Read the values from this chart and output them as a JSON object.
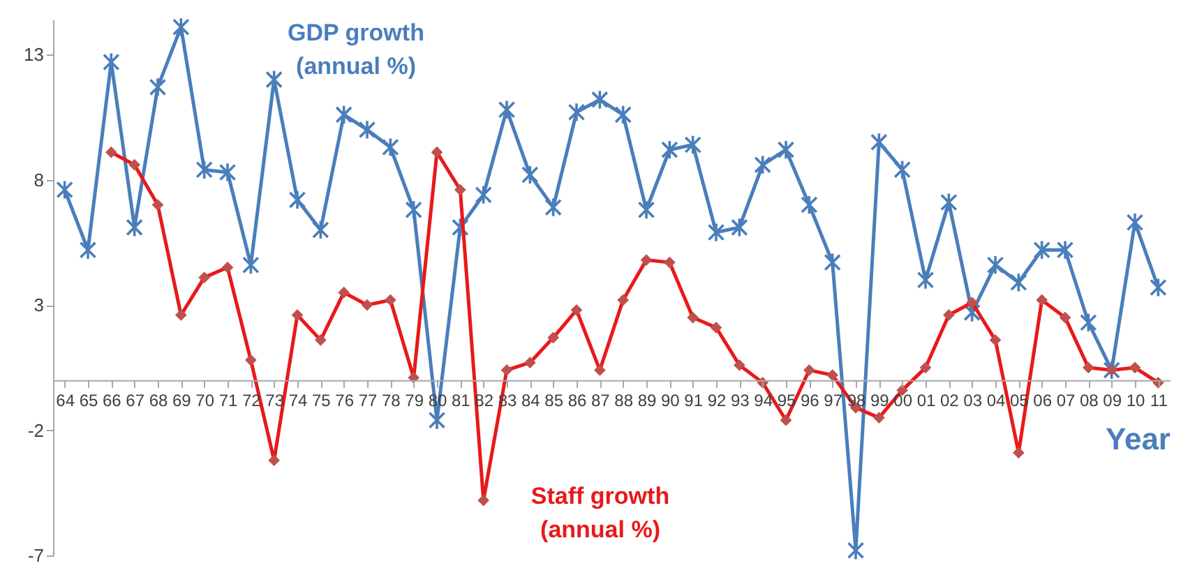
{
  "chart_data": {
    "type": "line",
    "xlabel": "Year",
    "categories": [
      "64",
      "65",
      "66",
      "67",
      "68",
      "69",
      "70",
      "71",
      "72",
      "73",
      "74",
      "75",
      "76",
      "77",
      "78",
      "79",
      "80",
      "81",
      "82",
      "83",
      "84",
      "85",
      "86",
      "87",
      "88",
      "89",
      "90",
      "91",
      "92",
      "93",
      "94",
      "95",
      "96",
      "97",
      "98",
      "99",
      "00",
      "01",
      "02",
      "03",
      "04",
      "05",
      "06",
      "07",
      "08",
      "09",
      "10",
      "11"
    ],
    "series": [
      {
        "name": "GDP growth (annual %)",
        "color": "#4a7ebb",
        "marker": "cross",
        "values": [
          7.6,
          5.2,
          12.7,
          6.1,
          11.7,
          14.1,
          8.4,
          8.3,
          4.6,
          12.0,
          7.2,
          6.0,
          10.6,
          10.0,
          9.3,
          6.8,
          -1.6,
          6.1,
          7.4,
          10.8,
          8.2,
          6.9,
          10.7,
          11.2,
          10.6,
          6.8,
          9.2,
          9.4,
          5.9,
          6.1,
          8.6,
          9.2,
          7.0,
          4.7,
          -6.8,
          9.5,
          8.4,
          4.0,
          7.1,
          2.7,
          4.6,
          3.9,
          5.2,
          5.2,
          2.3,
          0.4,
          6.3,
          3.7
        ]
      },
      {
        "name": "Staff growth (annual %)",
        "color": "#e8191a",
        "marker": "diamond",
        "values": [
          null,
          null,
          9.1,
          8.6,
          7.0,
          2.6,
          4.1,
          4.5,
          0.8,
          -3.2,
          2.6,
          1.6,
          3.5,
          3.0,
          3.2,
          0.1,
          9.1,
          7.6,
          -4.8,
          0.4,
          0.7,
          1.7,
          2.8,
          0.4,
          3.2,
          4.8,
          4.7,
          2.5,
          2.1,
          0.6,
          -0.1,
          -1.6,
          0.4,
          0.2,
          -1.1,
          -1.5,
          -0.4,
          0.5,
          2.6,
          3.1,
          1.6,
          -2.9,
          3.2,
          2.5,
          0.5,
          0.4,
          0.5,
          -0.1
        ]
      }
    ],
    "ylim": [
      -7,
      14.4
    ],
    "yticks": [
      -7,
      -2,
      3,
      8,
      13
    ],
    "grid": false,
    "legend": false,
    "line_style": "solid"
  }
}
